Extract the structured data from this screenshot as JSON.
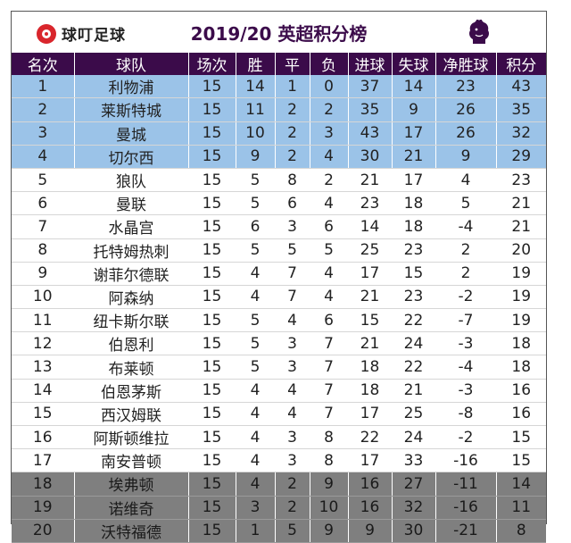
{
  "header": {
    "logo_text": "球叮足球",
    "title": "2019/20 英超积分榜",
    "league_icon": "premier-league-lion-icon"
  },
  "table": {
    "columns": [
      "名次",
      "球队",
      "场次",
      "胜",
      "平",
      "负",
      "进球",
      "失球",
      "净胜球",
      "积分"
    ],
    "rows": [
      {
        "rank": "1",
        "team": "利物浦",
        "played": "15",
        "won": "14",
        "drawn": "1",
        "lost": "0",
        "gf": "37",
        "ga": "14",
        "gd": "23",
        "pts": "43",
        "zone": "cl"
      },
      {
        "rank": "2",
        "team": "莱斯特城",
        "played": "15",
        "won": "11",
        "drawn": "2",
        "lost": "2",
        "gf": "35",
        "ga": "9",
        "gd": "26",
        "pts": "35",
        "zone": "cl"
      },
      {
        "rank": "3",
        "team": "曼城",
        "played": "15",
        "won": "10",
        "drawn": "2",
        "lost": "3",
        "gf": "43",
        "ga": "17",
        "gd": "26",
        "pts": "32",
        "zone": "cl"
      },
      {
        "rank": "4",
        "team": "切尔西",
        "played": "15",
        "won": "9",
        "drawn": "2",
        "lost": "4",
        "gf": "30",
        "ga": "21",
        "gd": "9",
        "pts": "29",
        "zone": "cl"
      },
      {
        "rank": "5",
        "team": "狼队",
        "played": "15",
        "won": "5",
        "drawn": "8",
        "lost": "2",
        "gf": "21",
        "ga": "17",
        "gd": "4",
        "pts": "23",
        "zone": "mid"
      },
      {
        "rank": "6",
        "team": "曼联",
        "played": "15",
        "won": "5",
        "drawn": "6",
        "lost": "4",
        "gf": "23",
        "ga": "18",
        "gd": "5",
        "pts": "21",
        "zone": "mid"
      },
      {
        "rank": "7",
        "team": "水晶宫",
        "played": "15",
        "won": "6",
        "drawn": "3",
        "lost": "6",
        "gf": "14",
        "ga": "18",
        "gd": "-4",
        "pts": "21",
        "zone": "mid"
      },
      {
        "rank": "8",
        "team": "托特姆热刺",
        "played": "15",
        "won": "5",
        "drawn": "5",
        "lost": "5",
        "gf": "25",
        "ga": "23",
        "gd": "2",
        "pts": "20",
        "zone": "mid"
      },
      {
        "rank": "9",
        "team": "谢菲尔德联",
        "played": "15",
        "won": "4",
        "drawn": "7",
        "lost": "4",
        "gf": "17",
        "ga": "15",
        "gd": "2",
        "pts": "19",
        "zone": "mid"
      },
      {
        "rank": "10",
        "team": "阿森纳",
        "played": "15",
        "won": "4",
        "drawn": "7",
        "lost": "4",
        "gf": "21",
        "ga": "23",
        "gd": "-2",
        "pts": "19",
        "zone": "mid"
      },
      {
        "rank": "11",
        "team": "纽卡斯尔联",
        "played": "15",
        "won": "5",
        "drawn": "4",
        "lost": "6",
        "gf": "15",
        "ga": "22",
        "gd": "-7",
        "pts": "19",
        "zone": "mid"
      },
      {
        "rank": "12",
        "team": "伯恩利",
        "played": "15",
        "won": "5",
        "drawn": "3",
        "lost": "7",
        "gf": "21",
        "ga": "24",
        "gd": "-3",
        "pts": "18",
        "zone": "mid"
      },
      {
        "rank": "13",
        "team": "布莱顿",
        "played": "15",
        "won": "5",
        "drawn": "3",
        "lost": "7",
        "gf": "18",
        "ga": "22",
        "gd": "-4",
        "pts": "18",
        "zone": "mid"
      },
      {
        "rank": "14",
        "team": "伯恩茅斯",
        "played": "15",
        "won": "4",
        "drawn": "4",
        "lost": "7",
        "gf": "18",
        "ga": "21",
        "gd": "-3",
        "pts": "16",
        "zone": "mid"
      },
      {
        "rank": "15",
        "team": "西汉姆联",
        "played": "15",
        "won": "4",
        "drawn": "4",
        "lost": "7",
        "gf": "17",
        "ga": "25",
        "gd": "-8",
        "pts": "16",
        "zone": "mid"
      },
      {
        "rank": "16",
        "team": "阿斯顿维拉",
        "played": "15",
        "won": "4",
        "drawn": "3",
        "lost": "8",
        "gf": "22",
        "ga": "24",
        "gd": "-2",
        "pts": "15",
        "zone": "mid"
      },
      {
        "rank": "17",
        "team": "南安普顿",
        "played": "15",
        "won": "4",
        "drawn": "3",
        "lost": "8",
        "gf": "17",
        "ga": "33",
        "gd": "-16",
        "pts": "15",
        "zone": "mid"
      },
      {
        "rank": "18",
        "team": "埃弗顿",
        "played": "15",
        "won": "4",
        "drawn": "2",
        "lost": "9",
        "gf": "16",
        "ga": "27",
        "gd": "-11",
        "pts": "14",
        "zone": "rel"
      },
      {
        "rank": "19",
        "team": "诺维奇",
        "played": "15",
        "won": "3",
        "drawn": "2",
        "lost": "10",
        "gf": "16",
        "ga": "32",
        "gd": "-16",
        "pts": "11",
        "zone": "rel"
      },
      {
        "rank": "20",
        "team": "沃特福德",
        "played": "15",
        "won": "1",
        "drawn": "5",
        "lost": "9",
        "gf": "9",
        "ga": "30",
        "gd": "-21",
        "pts": "8",
        "zone": "rel"
      }
    ]
  },
  "colors": {
    "header_bg": "#3b0b4a",
    "cl_zone": "#9bc3e8",
    "relegation_zone": "#7f7f7f",
    "logo_red": "#d9262c"
  }
}
